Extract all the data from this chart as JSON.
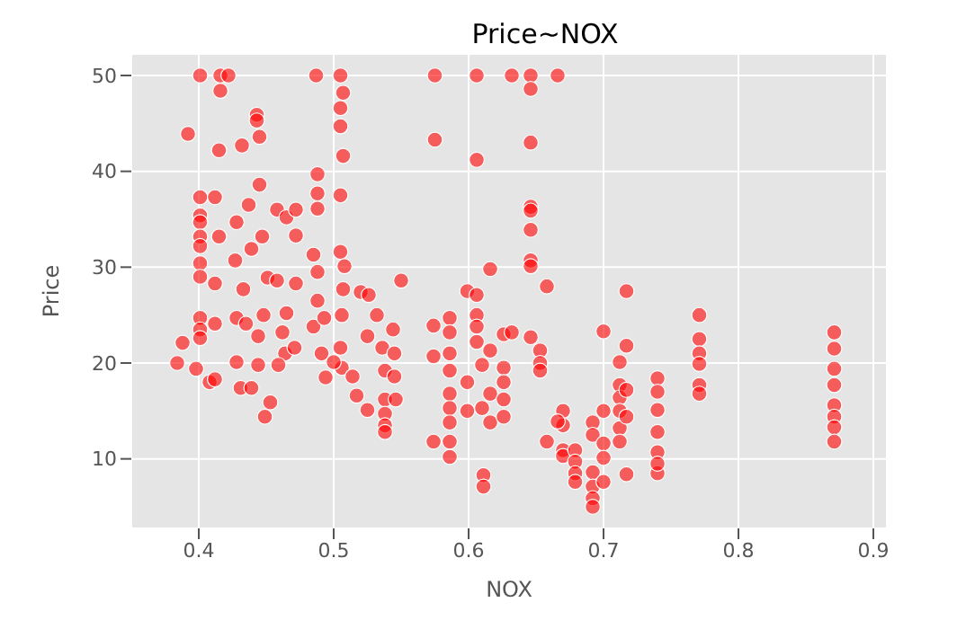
{
  "chart_data": {
    "type": "scatter",
    "title": "Price~NOX",
    "xlabel": "NOX",
    "ylabel": "Price",
    "color": "#ff0000",
    "marker": "circle",
    "grid": true,
    "legend": false,
    "xlim": [
      0.35,
      0.91
    ],
    "ylim": [
      2.75,
      52.25
    ],
    "xticks": [
      0.4,
      0.5,
      0.6,
      0.7,
      0.8,
      0.9
    ],
    "yticks": [
      10,
      20,
      30,
      40,
      50
    ],
    "x": [
      0.384,
      0.388,
      0.392,
      0.398,
      0.401,
      0.401,
      0.401,
      0.401,
      0.401,
      0.401,
      0.401,
      0.401,
      0.401,
      0.401,
      0.401,
      0.412,
      0.415,
      0.416,
      0.416,
      0.422,
      0.412,
      0.408,
      0.412,
      0.415,
      0.412,
      0.428,
      0.432,
      0.437,
      0.443,
      0.443,
      0.445,
      0.445,
      0.427,
      0.433,
      0.428,
      0.435,
      0.428,
      0.431,
      0.439,
      0.449,
      0.453,
      0.444,
      0.448,
      0.447,
      0.451,
      0.439,
      0.444,
      0.458,
      0.465,
      0.472,
      0.472,
      0.458,
      0.472,
      0.465,
      0.464,
      0.459,
      0.471,
      0.462,
      0.485,
      0.488,
      0.488,
      0.488,
      0.487,
      0.485,
      0.488,
      0.488,
      0.491,
      0.494,
      0.493,
      0.505,
      0.507,
      0.505,
      0.505,
      0.507,
      0.505,
      0.505,
      0.508,
      0.507,
      0.506,
      0.505,
      0.506,
      0.5,
      0.52,
      0.526,
      0.514,
      0.517,
      0.525,
      0.525,
      0.532,
      0.536,
      0.55,
      0.538,
      0.538,
      0.538,
      0.538,
      0.538,
      0.544,
      0.545,
      0.545,
      0.546,
      0.575,
      0.575,
      0.574,
      0.574,
      0.574,
      0.586,
      0.586,
      0.586,
      0.586,
      0.586,
      0.586,
      0.586,
      0.586,
      0.586,
      0.599,
      0.599,
      0.599,
      0.606,
      0.606,
      0.606,
      0.606,
      0.606,
      0.606,
      0.61,
      0.61,
      0.611,
      0.611,
      0.616,
      0.616,
      0.616,
      0.616,
      0.626,
      0.626,
      0.626,
      0.626,
      0.626,
      0.632,
      0.632,
      0.646,
      0.646,
      0.646,
      0.646,
      0.646,
      0.646,
      0.646,
      0.646,
      0.646,
      0.658,
      0.666,
      0.653,
      0.653,
      0.653,
      0.658,
      0.67,
      0.67,
      0.666,
      0.67,
      0.67,
      0.679,
      0.679,
      0.679,
      0.679,
      0.692,
      0.692,
      0.692,
      0.692,
      0.692,
      0.692,
      0.7,
      0.7,
      0.7,
      0.7,
      0.7,
      0.712,
      0.712,
      0.712,
      0.712,
      0.712,
      0.712,
      0.717,
      0.717,
      0.717,
      0.717,
      0.717,
      0.74,
      0.74,
      0.74,
      0.74,
      0.74,
      0.74,
      0.74,
      0.771,
      0.771,
      0.771,
      0.771,
      0.771,
      0.771,
      0.871,
      0.871,
      0.871,
      0.871,
      0.871,
      0.871,
      0.871,
      0.871
    ],
    "values": [
      20.0,
      22.1,
      43.9,
      19.4,
      50,
      37.3,
      35.4,
      34.7,
      33.2,
      32.2,
      30.4,
      29.0,
      24.7,
      23.5,
      22.6,
      37.3,
      42.2,
      50,
      48.4,
      50,
      28.3,
      18.0,
      18.3,
      33.2,
      24.1,
      34.7,
      42.7,
      36.5,
      45.9,
      45.3,
      43.6,
      38.6,
      30.7,
      27.7,
      24.7,
      24.1,
      20.1,
      17.4,
      17.4,
      14.4,
      15.9,
      22.8,
      25.0,
      33.2,
      28.9,
      31.9,
      19.8,
      36.0,
      35.2,
      36.0,
      33.3,
      28.6,
      28.3,
      25.2,
      21.0,
      19.8,
      21.6,
      23.2,
      31.3,
      39.7,
      37.7,
      36.1,
      50,
      23.8,
      29.5,
      26.5,
      21.0,
      18.5,
      24.7,
      50,
      48.2,
      46.6,
      44.7,
      41.6,
      37.5,
      31.6,
      30.1,
      27.7,
      25.0,
      21.6,
      19.5,
      20.1,
      27.4,
      27.1,
      18.6,
      16.6,
      15.1,
      22.8,
      25.0,
      21.6,
      28.6,
      19.2,
      16.2,
      14.7,
      13.5,
      12.8,
      23.5,
      21.0,
      18.6,
      16.2,
      50,
      43.3,
      23.9,
      20.7,
      11.8,
      24.7,
      23.2,
      21.0,
      19.2,
      16.8,
      15.3,
      13.8,
      11.8,
      10.2,
      27.5,
      18.0,
      15.0,
      50,
      41.2,
      27.1,
      25.0,
      23.8,
      22.2,
      19.8,
      15.3,
      8.3,
      7.1,
      29.8,
      21.3,
      16.8,
      13.8,
      19.5,
      18.0,
      16.2,
      14.4,
      23.0,
      23.2,
      50,
      50,
      48.6,
      43.0,
      36.3,
      35.9,
      33.9,
      30.7,
      30.1,
      22.7,
      28.0,
      50,
      21.3,
      20.0,
      19.2,
      11.8,
      15.0,
      13.5,
      13.9,
      10.9,
      10.3,
      10.9,
      9.7,
      8.5,
      7.6,
      13.8,
      12.5,
      8.6,
      7.1,
      5.9,
      5.0,
      23.3,
      15.0,
      11.6,
      10.1,
      7.6,
      20.1,
      17.7,
      16.4,
      15.0,
      13.2,
      11.8,
      27.5,
      21.8,
      17.2,
      14.4,
      8.4,
      18.4,
      17.0,
      15.1,
      12.8,
      10.7,
      8.5,
      9.5,
      25.0,
      22.5,
      21.0,
      19.9,
      17.7,
      16.8,
      23.2,
      21.5,
      19.4,
      17.7,
      15.6,
      14.4,
      13.3,
      11.8
    ]
  }
}
